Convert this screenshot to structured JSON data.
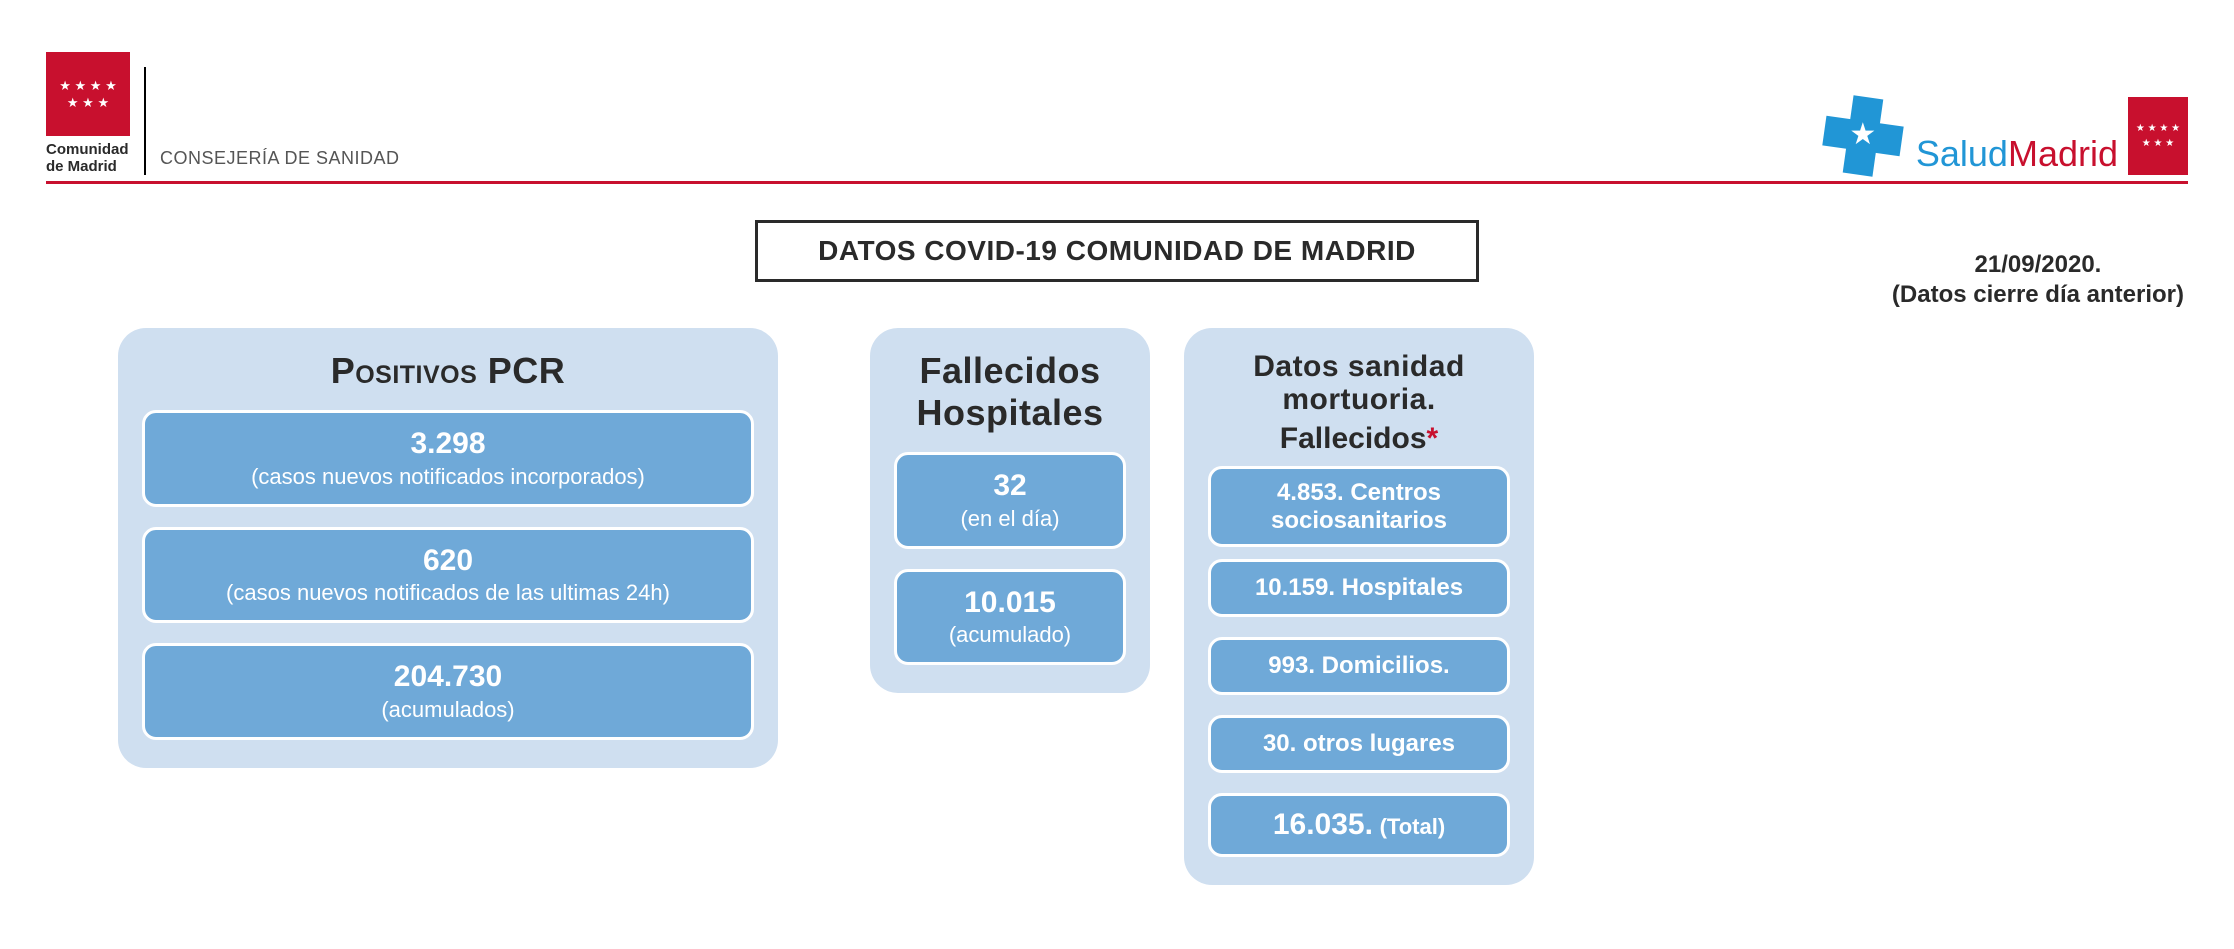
{
  "header": {
    "org_line1": "Comunidad",
    "org_line2": "de Madrid",
    "department": "CONSEJERÍA DE SANIDAD",
    "brand_salud": "Salud",
    "brand_madrid": "Madrid"
  },
  "title": "DATOS COVID-19 COMUNIDAD DE MADRID",
  "date": {
    "value": "21/09/2020.",
    "note": "(Datos cierre día anterior)"
  },
  "pcr": {
    "heading": "Positivos PCR",
    "boxes": [
      {
        "value": "3.298",
        "label": "(casos nuevos notificados incorporados)"
      },
      {
        "value": "620",
        "label": "(casos nuevos notificados de las ultimas 24h)"
      },
      {
        "value": "204.730",
        "label": "(acumulados)"
      }
    ]
  },
  "fh": {
    "heading_l1": "Fallecidos",
    "heading_l2": "Hospitales",
    "boxes": [
      {
        "value": "32",
        "label": "(en el día)"
      },
      {
        "value": "10.015",
        "label": "(acumulado)"
      }
    ]
  },
  "mort": {
    "heading_l1": "Datos sanidad",
    "heading_l2": "mortuoria.",
    "subheading": "Fallecidos",
    "rows": [
      {
        "value": "4.853.",
        "label": "Centros sociosanitarios",
        "twoLine": true
      },
      {
        "value": "10.159.",
        "label": "Hospitales"
      },
      {
        "value": "993.",
        "label": "Domicilios."
      },
      {
        "value": "30.",
        "label": "otros lugares"
      }
    ],
    "total": {
      "value": "16.035.",
      "label": "(Total)"
    }
  },
  "colors": {
    "accent_red": "#c8102e",
    "card_bg": "#cfdff0",
    "pill_bg": "#6fa9d8",
    "salud_blue": "#2196d6"
  }
}
